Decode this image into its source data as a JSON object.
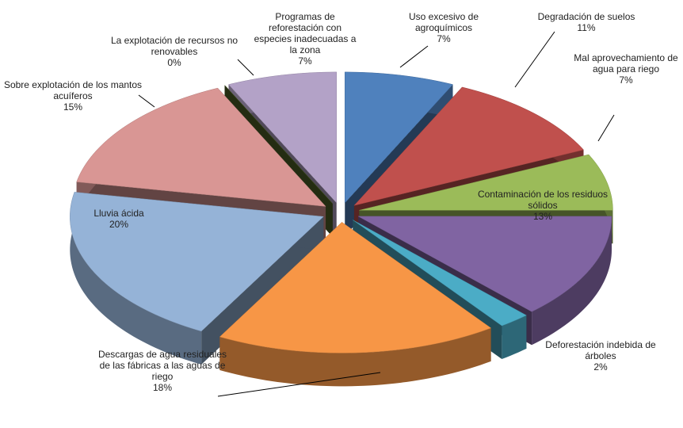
{
  "chart_data": {
    "type": "pie",
    "categories": [
      "Uso excesivo de agroquímicos",
      "Degradación de suelos",
      "Mal aprovechamiento de agua para riego",
      "Contaminación de los residuos sólidos",
      "Deforestación indebida de árboles",
      "Descargas de agua residuales de las fábricas a las aguas de riego",
      "Lluvia ácida",
      "Sobre explotación de los mantos acuíferos",
      "La explotación de recursos no renovables",
      "Programas de reforestación con especies inadecuadas a la zona"
    ],
    "values": [
      7,
      11,
      7,
      13,
      2,
      18,
      20,
      15,
      0,
      7
    ],
    "value_labels": [
      "7%",
      "11%",
      "7%",
      "13%",
      "2%",
      "18%",
      "20%",
      "15%",
      "0%",
      "7%"
    ],
    "colors": [
      "#4f81bd",
      "#c0504d",
      "#9bbb59",
      "#8064a2",
      "#4bacc6",
      "#f79646",
      "#95b3d7",
      "#d99694",
      "#4f6228",
      "#b3a2c7"
    ]
  }
}
